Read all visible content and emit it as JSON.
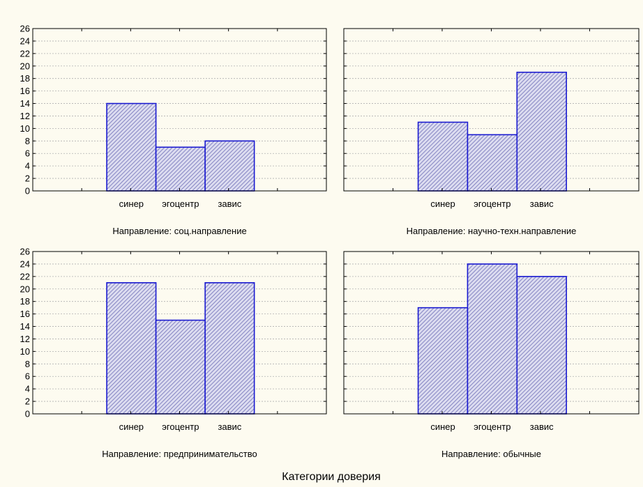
{
  "chart_data": {
    "type": "bar",
    "xlabel": "Категории доверия",
    "categories": [
      "синер",
      "эгоцентр",
      "завис"
    ],
    "ylim": [
      0,
      26
    ],
    "yticks": [
      0,
      2,
      4,
      6,
      8,
      10,
      12,
      14,
      16,
      18,
      20,
      22,
      24,
      26
    ],
    "grid": true,
    "colors": {
      "bar_fill": "#dcdcf0",
      "bar_edge": "#1a1ad0",
      "hatch": "#7070b8",
      "grid": "#b0b0b0",
      "background": "#fdfbf0"
    },
    "panels": [
      {
        "title": "Направление: соц.направление",
        "values": [
          14,
          7,
          8
        ]
      },
      {
        "title": "Направление: научно-техн.направление",
        "values": [
          11,
          9,
          19
        ]
      },
      {
        "title": "Направление: предпринимательство",
        "values": [
          21,
          15,
          21
        ]
      },
      {
        "title": "Направление: обычные",
        "values": [
          17,
          24,
          22
        ]
      }
    ]
  }
}
